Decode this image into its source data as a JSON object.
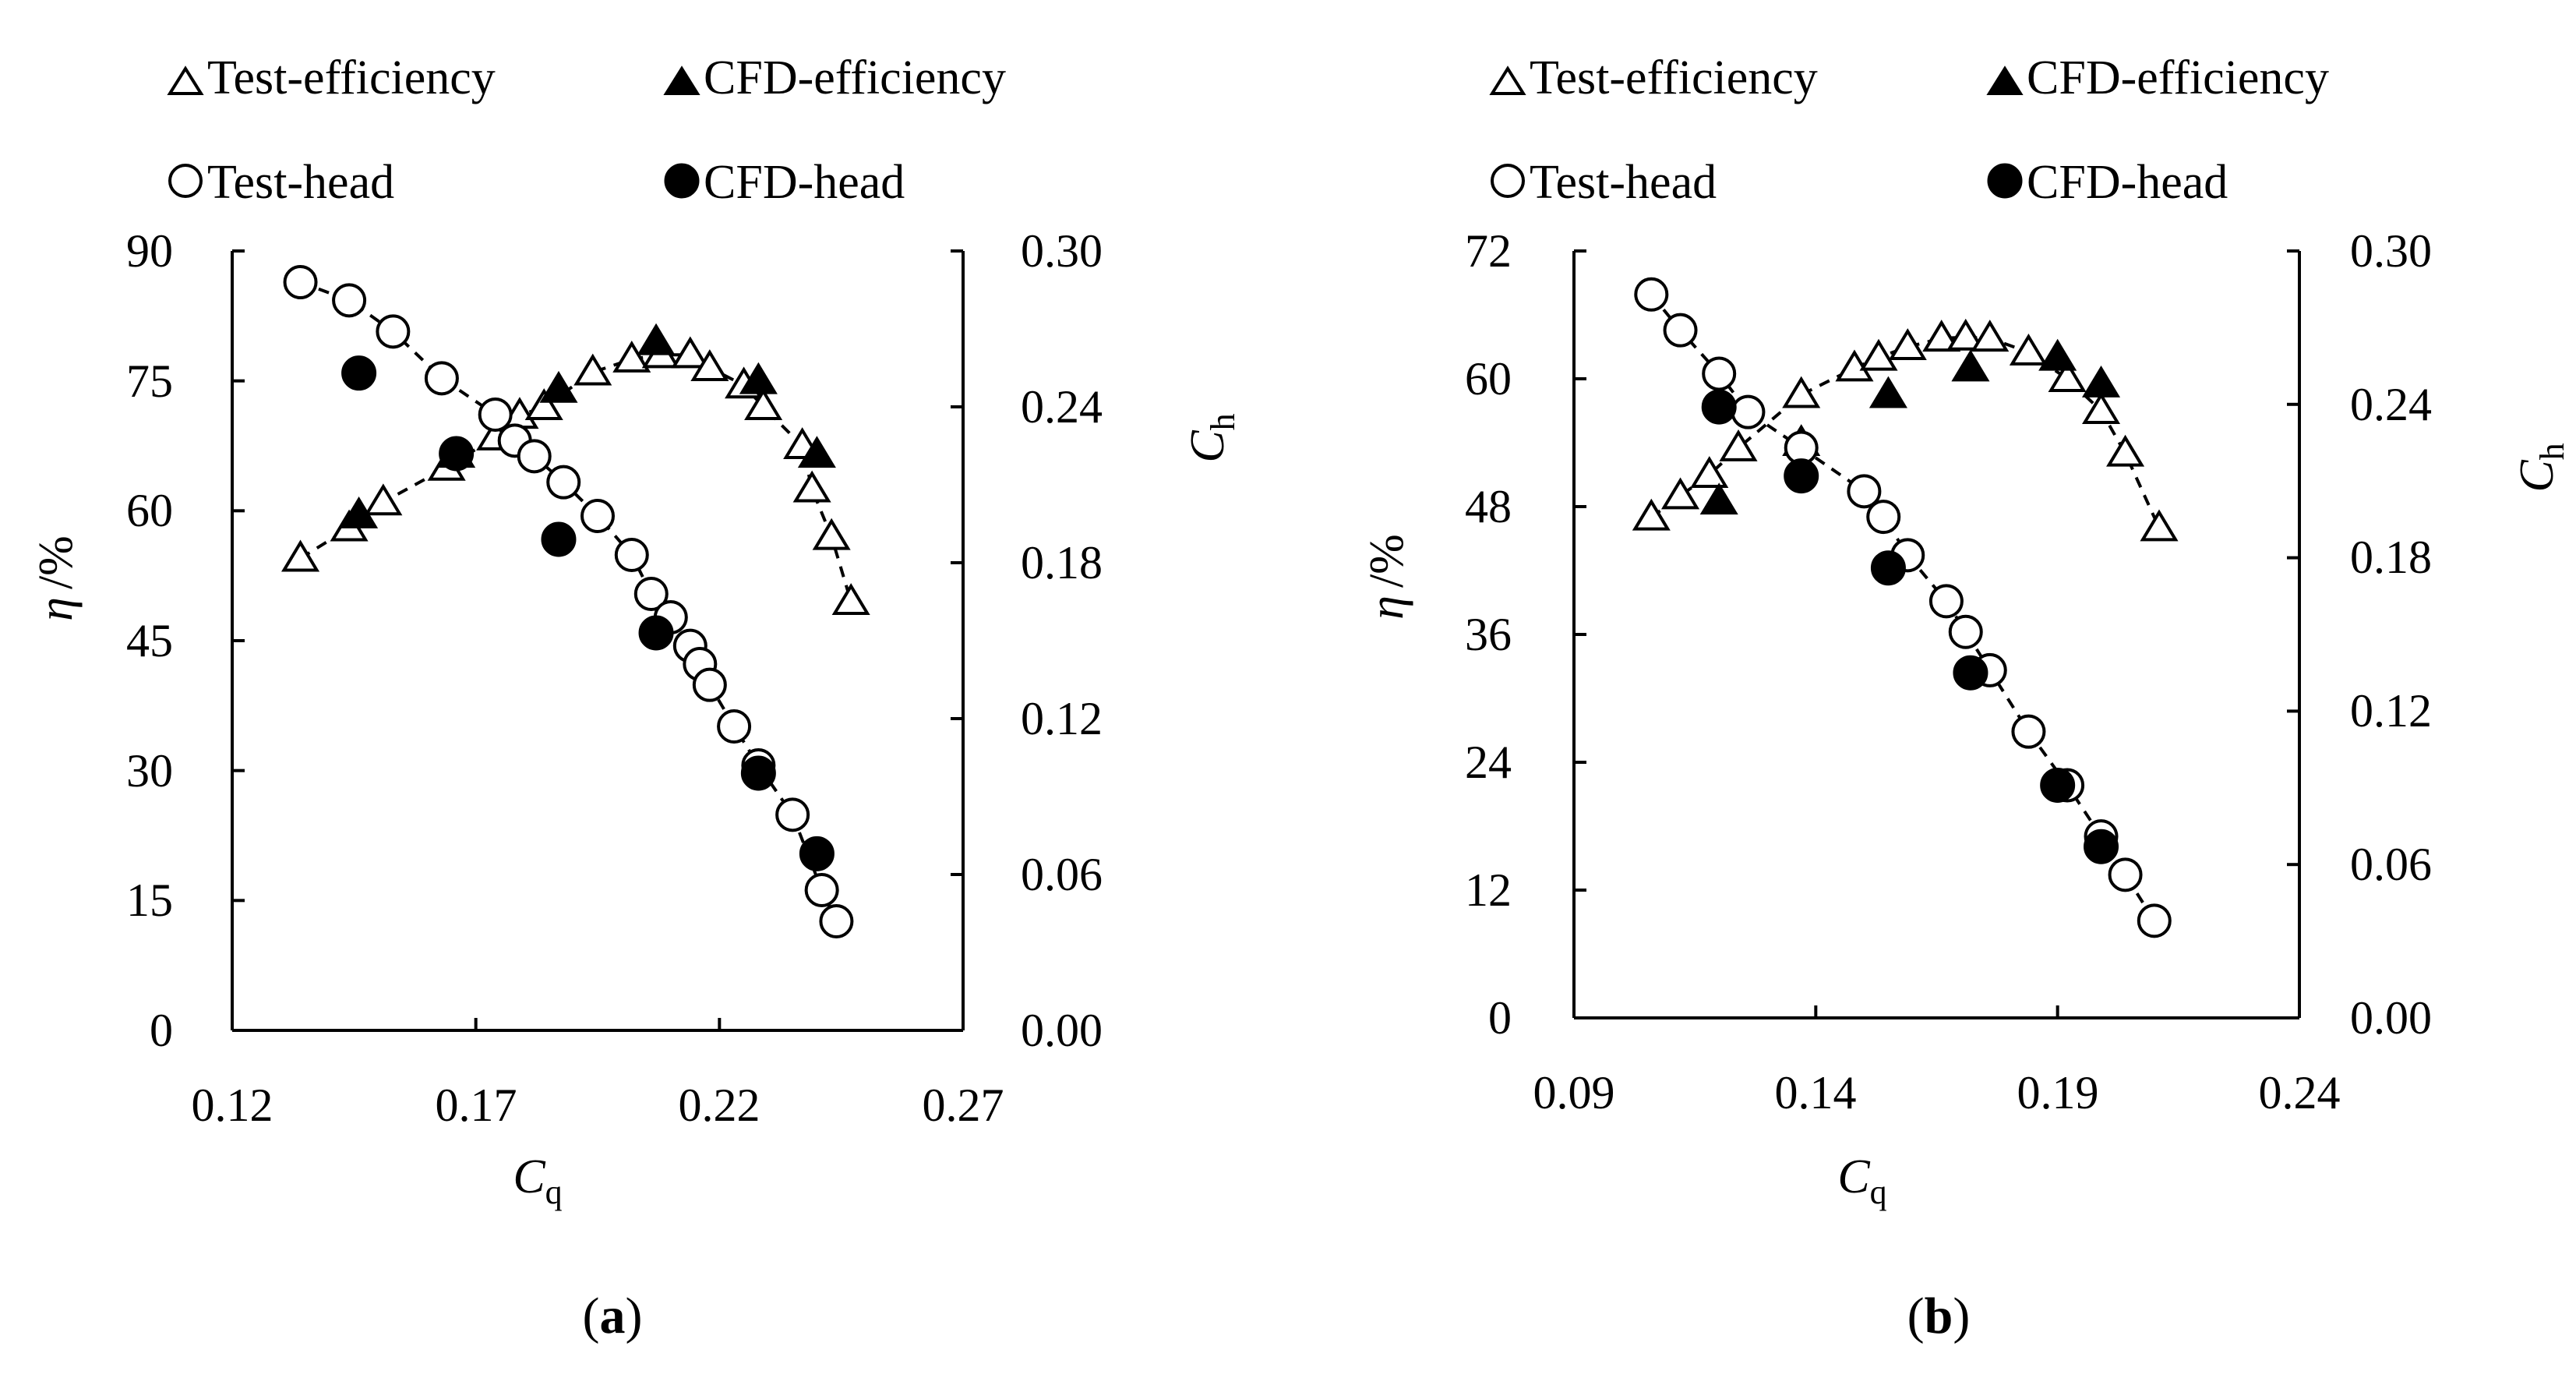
{
  "figure": {
    "panels": [
      {
        "id": "a",
        "label": "a",
        "label_open": "(",
        "label_close": ")"
      },
      {
        "id": "b",
        "label": "b",
        "label_open": "(",
        "label_close": ")"
      }
    ],
    "legend": [
      {
        "name": "Test-efficiency",
        "symbol": "triangle-open"
      },
      {
        "name": "CFD-efficiency",
        "symbol": "triangle-filled"
      },
      {
        "name": "Test-head",
        "symbol": "circle-open"
      },
      {
        "name": "CFD-head",
        "symbol": "circle-filled"
      }
    ],
    "colors": {
      "ink": "#000000",
      "background": "#ffffff"
    }
  },
  "chart_data": [
    {
      "panel": "a",
      "type": "scatter",
      "title": "",
      "xlabel": {
        "main": "C",
        "sub": "q"
      },
      "ylabel_left": {
        "main": "η",
        "unit": "/%"
      },
      "ylabel_right": {
        "main": "C",
        "sub": "h"
      },
      "xlim": [
        0.12,
        0.27
      ],
      "xticks": [
        "0.12",
        "0.17",
        "0.22",
        "0.27"
      ],
      "ylim_left": [
        0,
        90
      ],
      "yticks_left": [
        "0",
        "15",
        "30",
        "45",
        "60",
        "75",
        "90"
      ],
      "ylim_right": [
        0.0,
        0.3
      ],
      "yticks_right": [
        "0.00",
        "0.06",
        "0.12",
        "0.18",
        "0.24",
        "0.30"
      ],
      "grid": false,
      "legend_position": "top",
      "series": [
        {
          "name": "Test-efficiency",
          "axis": "left",
          "marker": "triangle-open",
          "line": "dashed",
          "x": [
            0.134,
            0.144,
            0.151,
            0.164,
            0.174,
            0.179,
            0.184,
            0.194,
            0.202,
            0.208,
            0.214,
            0.218,
            0.225,
            0.229,
            0.237,
            0.239,
            0.243,
            0.247
          ],
          "y": [
            54.5,
            58,
            61,
            65,
            68.5,
            71,
            72,
            76,
            77.5,
            78,
            78,
            76.5,
            74.5,
            72,
            67.5,
            62.5,
            57,
            49.5
          ]
        },
        {
          "name": "CFD-efficiency",
          "axis": "left",
          "marker": "triangle-filled",
          "line": "none",
          "x": [
            0.146,
            0.166,
            0.187,
            0.207,
            0.228,
            0.24
          ],
          "y": [
            59.5,
            66.5,
            74,
            79.5,
            75,
            66.5
          ]
        },
        {
          "name": "Test-head",
          "axis": "right",
          "marker": "circle-open",
          "line": "dashed",
          "x": [
            0.134,
            0.144,
            0.153,
            0.163,
            0.174,
            0.178,
            0.182,
            0.188,
            0.195,
            0.202,
            0.206,
            0.21,
            0.214,
            0.216,
            0.218,
            0.223,
            0.228,
            0.235,
            0.241,
            0.244
          ],
          "y": [
            0.288,
            0.281,
            0.269,
            0.251,
            0.237,
            0.227,
            0.221,
            0.211,
            0.198,
            0.183,
            0.168,
            0.159,
            0.148,
            0.141,
            0.133,
            0.117,
            0.102,
            0.083,
            0.054,
            0.042
          ]
        },
        {
          "name": "CFD-head",
          "axis": "right",
          "marker": "circle-filled",
          "line": "none",
          "x": [
            0.146,
            0.166,
            0.187,
            0.207,
            0.228,
            0.24
          ],
          "y": [
            0.253,
            0.222,
            0.189,
            0.153,
            0.099,
            0.068
          ]
        }
      ]
    },
    {
      "panel": "b",
      "type": "scatter",
      "title": "",
      "xlabel": {
        "main": "C",
        "sub": "q"
      },
      "ylabel_left": {
        "main": "η",
        "unit": "/%"
      },
      "ylabel_right": {
        "main": "C",
        "sub": "h"
      },
      "xlim": [
        0.09,
        0.24
      ],
      "xticks": [
        "0.09",
        "0.14",
        "0.19",
        "0.24"
      ],
      "ylim_left": [
        0,
        72
      ],
      "yticks_left": [
        "0",
        "12",
        "24",
        "36",
        "48",
        "60",
        "72"
      ],
      "ylim_right": [
        0.0,
        0.3
      ],
      "yticks_right": [
        "0.00",
        "0.06",
        "0.12",
        "0.18",
        "0.24",
        "0.30"
      ],
      "grid": false,
      "legend_position": "top",
      "series": [
        {
          "name": "Test-efficiency",
          "axis": "left",
          "marker": "triangle-open",
          "line": "dashed",
          "x": [
            0.106,
            0.112,
            0.118,
            0.124,
            0.137,
            0.148,
            0.153,
            0.159,
            0.166,
            0.171,
            0.176,
            0.184,
            0.192,
            0.199,
            0.204,
            0.211
          ],
          "y": [
            47,
            49,
            51,
            53.5,
            58.5,
            61,
            62,
            63,
            63.8,
            63.9,
            63.8,
            62.5,
            60,
            57,
            53,
            46
          ]
        },
        {
          "name": "CFD-efficiency",
          "axis": "left",
          "marker": "triangle-filled",
          "line": "none",
          "x": [
            0.12,
            0.137,
            0.155,
            0.172,
            0.19,
            0.199
          ],
          "y": [
            48.5,
            54,
            58.5,
            61,
            62,
            59.5
          ]
        },
        {
          "name": "Test-head",
          "axis": "right",
          "marker": "circle-open",
          "line": "dashed",
          "x": [
            0.106,
            0.112,
            0.12,
            0.126,
            0.137,
            0.15,
            0.154,
            0.159,
            0.167,
            0.171,
            0.176,
            0.184,
            0.192,
            0.199,
            0.204,
            0.21
          ],
          "y": [
            0.283,
            0.269,
            0.252,
            0.237,
            0.223,
            0.206,
            0.196,
            0.181,
            0.163,
            0.151,
            0.136,
            0.112,
            0.091,
            0.071,
            0.056,
            0.038
          ]
        },
        {
          "name": "CFD-head",
          "axis": "right",
          "marker": "circle-filled",
          "line": "none",
          "x": [
            0.12,
            0.137,
            0.155,
            0.172,
            0.19,
            0.199
          ],
          "y": [
            0.239,
            0.212,
            0.176,
            0.135,
            0.091,
            0.067
          ]
        }
      ]
    }
  ]
}
